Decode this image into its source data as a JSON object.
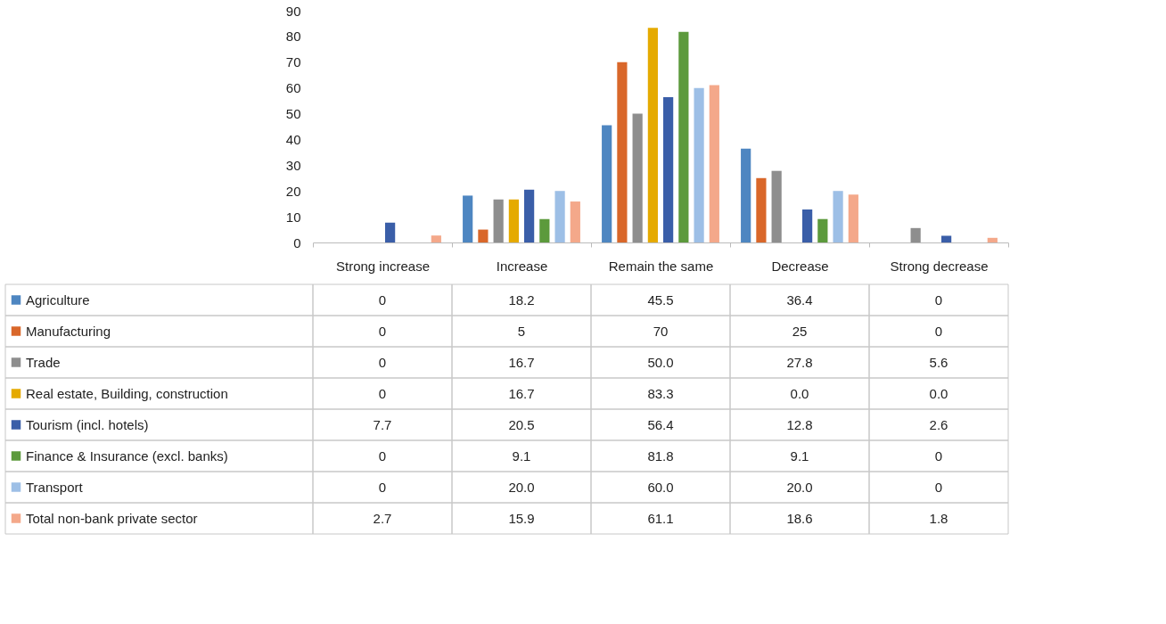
{
  "chart_data": {
    "type": "bar",
    "categories": [
      "Strong increase",
      "Increase",
      "Remain the same",
      "Decrease",
      "Strong decrease"
    ],
    "ylim": [
      0,
      90
    ],
    "yticks": [
      0,
      10,
      20,
      30,
      40,
      50,
      60,
      70,
      80,
      90
    ],
    "grid": false,
    "legend": "bottom left",
    "series": [
      {
        "name": "Agriculture",
        "color": "#4e86c1",
        "values": [
          0,
          18.2,
          45.5,
          36.4,
          0
        ],
        "value_labels": [
          "0",
          "18.2",
          "45.5",
          "36.4",
          "0"
        ]
      },
      {
        "name": "Manufacturing",
        "color": "#d9672a",
        "values": [
          0,
          5,
          70,
          25,
          0
        ],
        "value_labels": [
          "0",
          "5",
          "70",
          "25",
          "0"
        ]
      },
      {
        "name": "Trade",
        "color": "#8e8e8e",
        "values": [
          0,
          16.7,
          50.0,
          27.8,
          5.6
        ],
        "value_labels": [
          "0",
          "16.7",
          "50.0",
          "27.8",
          "5.6"
        ]
      },
      {
        "name": "Real estate, Building, construction",
        "color": "#e5aa00",
        "values": [
          0,
          16.7,
          83.3,
          0.0,
          0.0
        ],
        "value_labels": [
          "0",
          "16.7",
          "83.3",
          "0.0",
          "0.0"
        ]
      },
      {
        "name": "Tourism (incl. hotels)",
        "color": "#3a5ea8",
        "values": [
          7.7,
          20.5,
          56.4,
          12.8,
          2.6
        ],
        "value_labels": [
          "7.7",
          "20.5",
          "56.4",
          "12.8",
          "2.6"
        ]
      },
      {
        "name": "Finance & Insurance (excl. banks)",
        "color": "#5c9a3c",
        "values": [
          0,
          9.1,
          81.8,
          9.1,
          0
        ],
        "value_labels": [
          "0",
          "9.1",
          "81.8",
          "9.1",
          "0"
        ]
      },
      {
        "name": "Transport",
        "color": "#9dbfe6",
        "values": [
          0,
          20.0,
          60.0,
          20.0,
          0
        ],
        "value_labels": [
          "0",
          "20.0",
          "60.0",
          "20.0",
          "0"
        ]
      },
      {
        "name": "Total non-bank private sector",
        "color": "#f4a88a",
        "values": [
          2.7,
          15.9,
          61.1,
          18.6,
          1.8
        ],
        "value_labels": [
          "2.7",
          "15.9",
          "61.1",
          "18.6",
          "1.8"
        ]
      }
    ]
  }
}
